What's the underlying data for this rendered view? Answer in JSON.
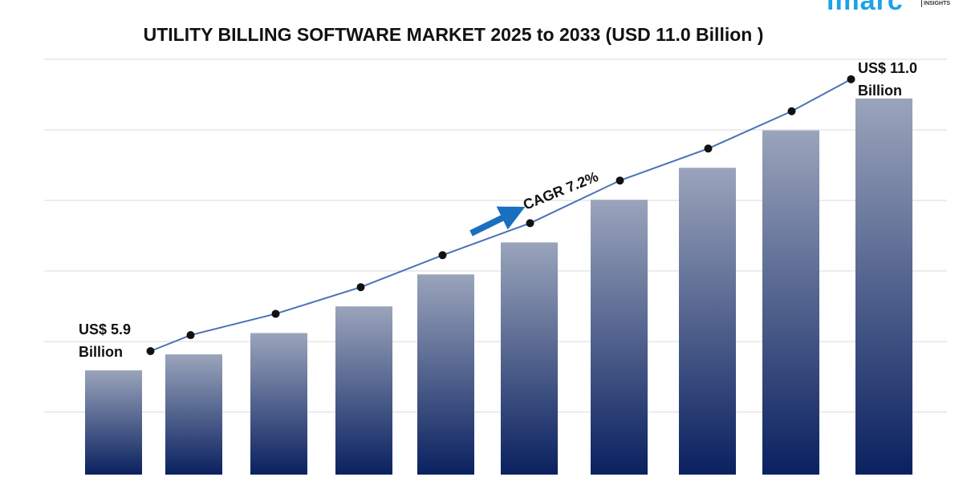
{
  "logo": {
    "text": "imarc",
    "sub": "INSIGHTS"
  },
  "chart_data": {
    "type": "bar",
    "title": "UTILITY BILLING SOFTWARE MARKET 2025 to 2033 (USD 11.0 Billion )",
    "values": [
      5.9,
      6.2,
      6.6,
      7.1,
      7.7,
      8.3,
      9.1,
      9.7,
      10.4,
      11.0
    ],
    "overlay_line": true,
    "grid": true,
    "annotations": {
      "start": [
        "US$ 5.9",
        "Billion"
      ],
      "end": [
        "US$ 11.0",
        "Billion"
      ],
      "cagr": "CAGR 7.2%"
    },
    "colors": {
      "bar_top": "#9aa4bb",
      "bar_bottom": "#0a2160",
      "line": "#4a72b8",
      "arrow": "#1a6fbf"
    }
  }
}
